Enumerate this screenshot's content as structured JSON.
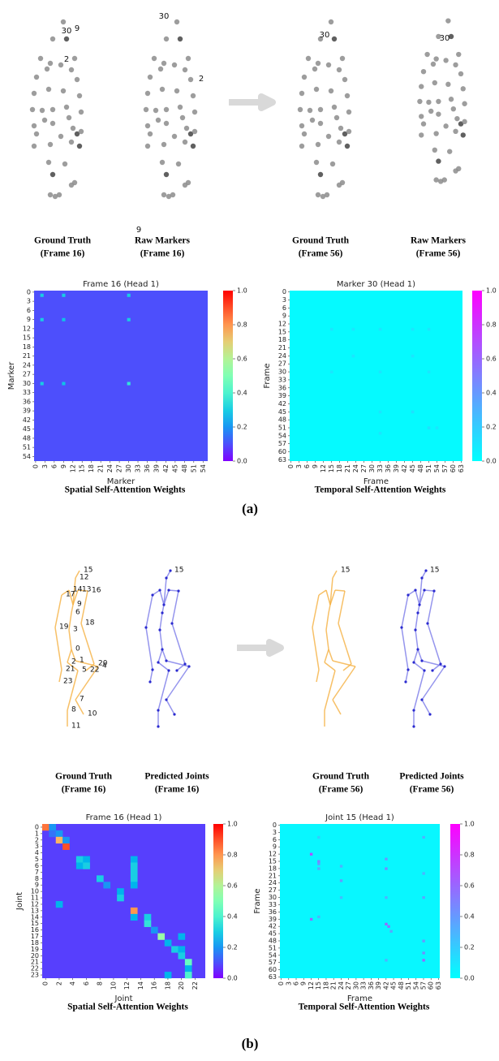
{
  "panel_a": {
    "label": "(a)",
    "scenes": [
      {
        "caption": "Ground Truth",
        "frame": "(Frame 16)",
        "labels": [
          "30",
          "9",
          "2"
        ]
      },
      {
        "caption": "Raw Markers",
        "frame": "(Frame 16)",
        "labels": [
          "30",
          "2",
          "9"
        ]
      },
      {
        "caption": "Ground Truth",
        "frame": "(Frame 56)",
        "labels": [
          "30"
        ]
      },
      {
        "caption": "Raw Markers",
        "frame": "(Frame 56)",
        "labels": [
          "30"
        ]
      }
    ]
  },
  "panel_b": {
    "label": "(b)",
    "scenes": [
      {
        "caption": "Ground Truth",
        "frame": "(Frame 16)",
        "labels": [
          "15",
          "12",
          "14",
          "13",
          "16",
          "17",
          "9",
          "6",
          "18",
          "19",
          "3",
          "0",
          "2",
          "1",
          "20",
          "4",
          "21",
          "5",
          "22",
          "23",
          "7",
          "8",
          "10",
          "11"
        ]
      },
      {
        "caption": "Predicted Joints",
        "frame": "(Frame 16)",
        "labels": [
          "15"
        ]
      },
      {
        "caption": "Ground Truth",
        "frame": "(Frame 56)",
        "labels": [
          "15"
        ]
      },
      {
        "caption": "Predicted Joints",
        "frame": "(Frame 56)",
        "labels": [
          "15"
        ]
      }
    ]
  },
  "chart_data": [
    {
      "type": "heatmap",
      "title": "Frame 16 (Head 1)",
      "xlabel": "Marker",
      "ylabel": "Marker",
      "caption": "Spatial Self-Attention Weights",
      "colormap": "rainbow",
      "clim": [
        0,
        1
      ],
      "xlim": [
        0,
        56
      ],
      "ylim": [
        0,
        56
      ],
      "xticks": [
        0,
        3,
        6,
        9,
        12,
        15,
        18,
        21,
        24,
        27,
        30,
        33,
        36,
        39,
        42,
        45,
        48,
        51,
        54
      ],
      "yticks": [
        0,
        3,
        6,
        9,
        12,
        15,
        18,
        21,
        24,
        27,
        30,
        33,
        36,
        39,
        42,
        45,
        48,
        51,
        54
      ],
      "cbar_ticks": [
        {
          "value": 0,
          "label": "0.0"
        },
        {
          "value": 0.2,
          "label": "0.2"
        },
        {
          "value": 0.4,
          "label": "0.4"
        },
        {
          "value": 0.6,
          "label": "0.6"
        },
        {
          "value": 0.8,
          "label": "0.8"
        },
        {
          "value": 1,
          "label": "1.0"
        }
      ],
      "background": 0.1,
      "cells": [
        {
          "row": 1,
          "col": 2,
          "value": 0.3
        },
        {
          "row": 1,
          "col": 9,
          "value": 0.3
        },
        {
          "row": 1,
          "col": 30,
          "value": 0.3
        },
        {
          "row": 9,
          "col": 2,
          "value": 0.3
        },
        {
          "row": 9,
          "col": 9,
          "value": 0.28
        },
        {
          "row": 9,
          "col": 30,
          "value": 0.3
        },
        {
          "row": 30,
          "col": 2,
          "value": 0.3
        },
        {
          "row": 30,
          "col": 9,
          "value": 0.28
        },
        {
          "row": 30,
          "col": 30,
          "value": 0.35
        }
      ]
    },
    {
      "type": "heatmap",
      "title": "Marker 30 (Head 1)",
      "xlabel": "Frame",
      "ylabel": "Frame",
      "caption": "Temporal Self-Attention Weights",
      "colormap": "cool",
      "clim": [
        0,
        1
      ],
      "xlim": [
        0,
        64
      ],
      "ylim": [
        0,
        64
      ],
      "xticks": [
        0,
        3,
        6,
        9,
        12,
        15,
        18,
        21,
        24,
        27,
        30,
        33,
        36,
        39,
        42,
        45,
        48,
        51,
        54,
        57,
        60,
        63
      ],
      "yticks": [
        0,
        3,
        6,
        9,
        12,
        15,
        18,
        21,
        24,
        27,
        30,
        33,
        36,
        39,
        42,
        45,
        48,
        51,
        54,
        57,
        60,
        63
      ],
      "cbar_ticks": [
        {
          "value": 0,
          "label": "0.0"
        },
        {
          "value": 0.2,
          "label": "0.2"
        },
        {
          "value": 0.4,
          "label": "0.4"
        },
        {
          "value": 0.6,
          "label": "0.6"
        },
        {
          "value": 0.8,
          "label": "0.8"
        },
        {
          "value": 1,
          "label": "1.0"
        }
      ],
      "background": 0.02,
      "cells": [
        {
          "row": 14,
          "col": 15,
          "value": 0.1
        },
        {
          "row": 14,
          "col": 23,
          "value": 0.1
        },
        {
          "row": 14,
          "col": 33,
          "value": 0.1
        },
        {
          "row": 14,
          "col": 45,
          "value": 0.1
        },
        {
          "row": 14,
          "col": 51,
          "value": 0.1
        },
        {
          "row": 24,
          "col": 23,
          "value": 0.1
        },
        {
          "row": 24,
          "col": 45,
          "value": 0.1
        },
        {
          "row": 30,
          "col": 15,
          "value": 0.1
        },
        {
          "row": 30,
          "col": 33,
          "value": 0.1
        },
        {
          "row": 30,
          "col": 51,
          "value": 0.1
        },
        {
          "row": 45,
          "col": 33,
          "value": 0.1
        },
        {
          "row": 45,
          "col": 45,
          "value": 0.12
        },
        {
          "row": 51,
          "col": 51,
          "value": 0.12
        },
        {
          "row": 51,
          "col": 54,
          "value": 0.1
        },
        {
          "row": 53,
          "col": 33,
          "value": 0.1
        }
      ]
    },
    {
      "type": "heatmap",
      "title": "Frame 16 (Head 1)",
      "xlabel": "Joint",
      "ylabel": "Joint",
      "caption": "Spatial Self-Attention Weights",
      "colormap": "rainbow",
      "clim": [
        0,
        1
      ],
      "xlim": [
        0,
        24
      ],
      "ylim": [
        0,
        24
      ],
      "xticks": [
        0,
        2,
        4,
        6,
        8,
        10,
        12,
        14,
        16,
        18,
        20,
        22
      ],
      "yticks": [
        0,
        1,
        2,
        3,
        4,
        5,
        6,
        7,
        8,
        9,
        10,
        11,
        12,
        13,
        14,
        15,
        16,
        17,
        18,
        19,
        20,
        21,
        22,
        23
      ],
      "cbar_ticks": [
        {
          "value": 0,
          "label": "0.0"
        },
        {
          "value": 0.2,
          "label": "0.2"
        },
        {
          "value": 0.4,
          "label": "0.4"
        },
        {
          "value": 0.6,
          "label": "0.6"
        },
        {
          "value": 0.8,
          "label": "0.8"
        },
        {
          "value": 1,
          "label": "1.0"
        }
      ],
      "background": 0.08,
      "cells": [
        {
          "row": 0,
          "col": 0,
          "value": 0.85
        },
        {
          "row": 0,
          "col": 1,
          "value": 0.2
        },
        {
          "row": 1,
          "col": 1,
          "value": 0.15
        },
        {
          "row": 1,
          "col": 2,
          "value": 0.2
        },
        {
          "row": 2,
          "col": 2,
          "value": 0.75
        },
        {
          "row": 3,
          "col": 3,
          "value": 0.9
        },
        {
          "row": 2,
          "col": 3,
          "value": 0.2
        },
        {
          "row": 5,
          "col": 5,
          "value": 0.3
        },
        {
          "row": 5,
          "col": 6,
          "value": 0.25
        },
        {
          "row": 6,
          "col": 5,
          "value": 0.25
        },
        {
          "row": 6,
          "col": 6,
          "value": 0.3
        },
        {
          "row": 5,
          "col": 13,
          "value": 0.25
        },
        {
          "row": 6,
          "col": 13,
          "value": 0.3
        },
        {
          "row": 7,
          "col": 13,
          "value": 0.3
        },
        {
          "row": 8,
          "col": 13,
          "value": 0.3
        },
        {
          "row": 9,
          "col": 13,
          "value": 0.25
        },
        {
          "row": 8,
          "col": 8,
          "value": 0.3
        },
        {
          "row": 9,
          "col": 9,
          "value": 0.2
        },
        {
          "row": 10,
          "col": 11,
          "value": 0.25
        },
        {
          "row": 11,
          "col": 11,
          "value": 0.3
        },
        {
          "row": 12,
          "col": 2,
          "value": 0.25
        },
        {
          "row": 13,
          "col": 13,
          "value": 0.8
        },
        {
          "row": 14,
          "col": 13,
          "value": 0.25
        },
        {
          "row": 14,
          "col": 15,
          "value": 0.3
        },
        {
          "row": 15,
          "col": 15,
          "value": 0.35
        },
        {
          "row": 16,
          "col": 16,
          "value": 0.2
        },
        {
          "row": 17,
          "col": 17,
          "value": 0.55
        },
        {
          "row": 17,
          "col": 20,
          "value": 0.25
        },
        {
          "row": 18,
          "col": 18,
          "value": 0.25
        },
        {
          "row": 19,
          "col": 19,
          "value": 0.3
        },
        {
          "row": 19,
          "col": 20,
          "value": 0.25
        },
        {
          "row": 20,
          "col": 20,
          "value": 0.3
        },
        {
          "row": 21,
          "col": 21,
          "value": 0.45
        },
        {
          "row": 22,
          "col": 21,
          "value": 0.25
        },
        {
          "row": 23,
          "col": 21,
          "value": 0.4
        },
        {
          "row": 23,
          "col": 18,
          "value": 0.25
        }
      ]
    },
    {
      "type": "heatmap",
      "title": "Joint 15 (Head 1)",
      "xlabel": "Frame",
      "ylabel": "Frame",
      "caption": "Temporal Self-Attention Weights",
      "colormap": "cool",
      "clim": [
        0,
        1
      ],
      "xlim": [
        0,
        64
      ],
      "ylim": [
        0,
        64
      ],
      "xticks": [
        0,
        3,
        6,
        9,
        12,
        15,
        18,
        21,
        24,
        27,
        30,
        33,
        36,
        39,
        42,
        45,
        48,
        51,
        54,
        57,
        60,
        63
      ],
      "yticks": [
        0,
        3,
        6,
        9,
        12,
        15,
        18,
        21,
        24,
        27,
        30,
        33,
        36,
        39,
        42,
        45,
        48,
        51,
        54,
        57,
        60,
        63
      ],
      "cbar_ticks": [
        {
          "value": 0,
          "label": "0.0"
        },
        {
          "value": 0.2,
          "label": "0.2"
        },
        {
          "value": 0.4,
          "label": "0.4"
        },
        {
          "value": 0.6,
          "label": "0.6"
        },
        {
          "value": 0.8,
          "label": "0.8"
        },
        {
          "value": 1,
          "label": "1.0"
        }
      ],
      "background": 0.03,
      "cells": [
        {
          "row": 12,
          "col": 12,
          "value": 0.7
        },
        {
          "row": 39,
          "col": 12,
          "value": 0.6
        },
        {
          "row": 15,
          "col": 15,
          "value": 0.5
        },
        {
          "row": 16,
          "col": 15,
          "value": 0.4
        },
        {
          "row": 18,
          "col": 15,
          "value": 0.35
        },
        {
          "row": 5,
          "col": 15,
          "value": 0.2
        },
        {
          "row": 38,
          "col": 15,
          "value": 0.3
        },
        {
          "row": 17,
          "col": 24,
          "value": 0.3
        },
        {
          "row": 23,
          "col": 24,
          "value": 0.4
        },
        {
          "row": 30,
          "col": 24,
          "value": 0.25
        },
        {
          "row": 14,
          "col": 42,
          "value": 0.4
        },
        {
          "row": 18,
          "col": 42,
          "value": 0.45
        },
        {
          "row": 30,
          "col": 42,
          "value": 0.3
        },
        {
          "row": 41,
          "col": 42,
          "value": 0.6
        },
        {
          "row": 42,
          "col": 43,
          "value": 0.55
        },
        {
          "row": 44,
          "col": 44,
          "value": 0.35
        },
        {
          "row": 56,
          "col": 42,
          "value": 0.3
        },
        {
          "row": 5,
          "col": 57,
          "value": 0.3
        },
        {
          "row": 20,
          "col": 57,
          "value": 0.3
        },
        {
          "row": 30,
          "col": 57,
          "value": 0.35
        },
        {
          "row": 48,
          "col": 57,
          "value": 0.4
        },
        {
          "row": 53,
          "col": 57,
          "value": 0.45
        },
        {
          "row": 56,
          "col": 57,
          "value": 0.6
        }
      ]
    }
  ]
}
